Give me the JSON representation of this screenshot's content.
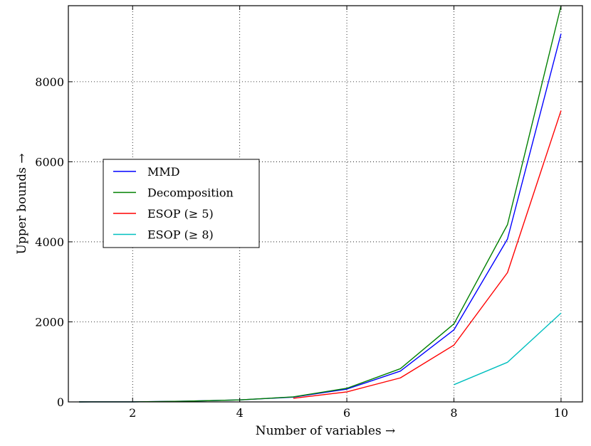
{
  "chart_data": {
    "type": "line",
    "title": "",
    "xlabel": "Number of variables →",
    "ylabel": "Upper bounds →",
    "xlim": [
      0.8,
      10.4
    ],
    "ylim": [
      0,
      9900
    ],
    "xticks": [
      2,
      4,
      6,
      8,
      10
    ],
    "yticks": [
      0,
      2000,
      4000,
      6000,
      8000
    ],
    "xtick_labels": [
      "2",
      "4",
      "6",
      "8",
      "10"
    ],
    "ytick_labels": [
      "0",
      "2000",
      "4000",
      "6000",
      "8000"
    ],
    "grid": true,
    "legend_position": "center-left",
    "series": [
      {
        "name": "MMD",
        "color": "#0000ff",
        "x": [
          1,
          2,
          3,
          4,
          5,
          6,
          7,
          8,
          9,
          10
        ],
        "y": [
          0,
          2,
          18,
          50,
          120,
          320,
          770,
          1800,
          4070,
          9200
        ]
      },
      {
        "name": "Decomposition",
        "color": "#008000",
        "x": [
          1,
          2,
          3,
          4,
          5,
          6,
          7,
          8,
          9,
          10
        ],
        "y": [
          0,
          2,
          18,
          50,
          125,
          340,
          830,
          1950,
          4430,
          9900
        ]
      },
      {
        "name": "ESOP (≥ 5)",
        "color": "#ff0000",
        "x": [
          5,
          6,
          7,
          8,
          9,
          10
        ],
        "y": [
          90,
          250,
          600,
          1420,
          3230,
          7280
        ]
      },
      {
        "name": "ESOP (≥ 8)",
        "color": "#00bfbf",
        "x": [
          8,
          9,
          10
        ],
        "y": [
          430,
          990,
          2220
        ]
      }
    ]
  }
}
